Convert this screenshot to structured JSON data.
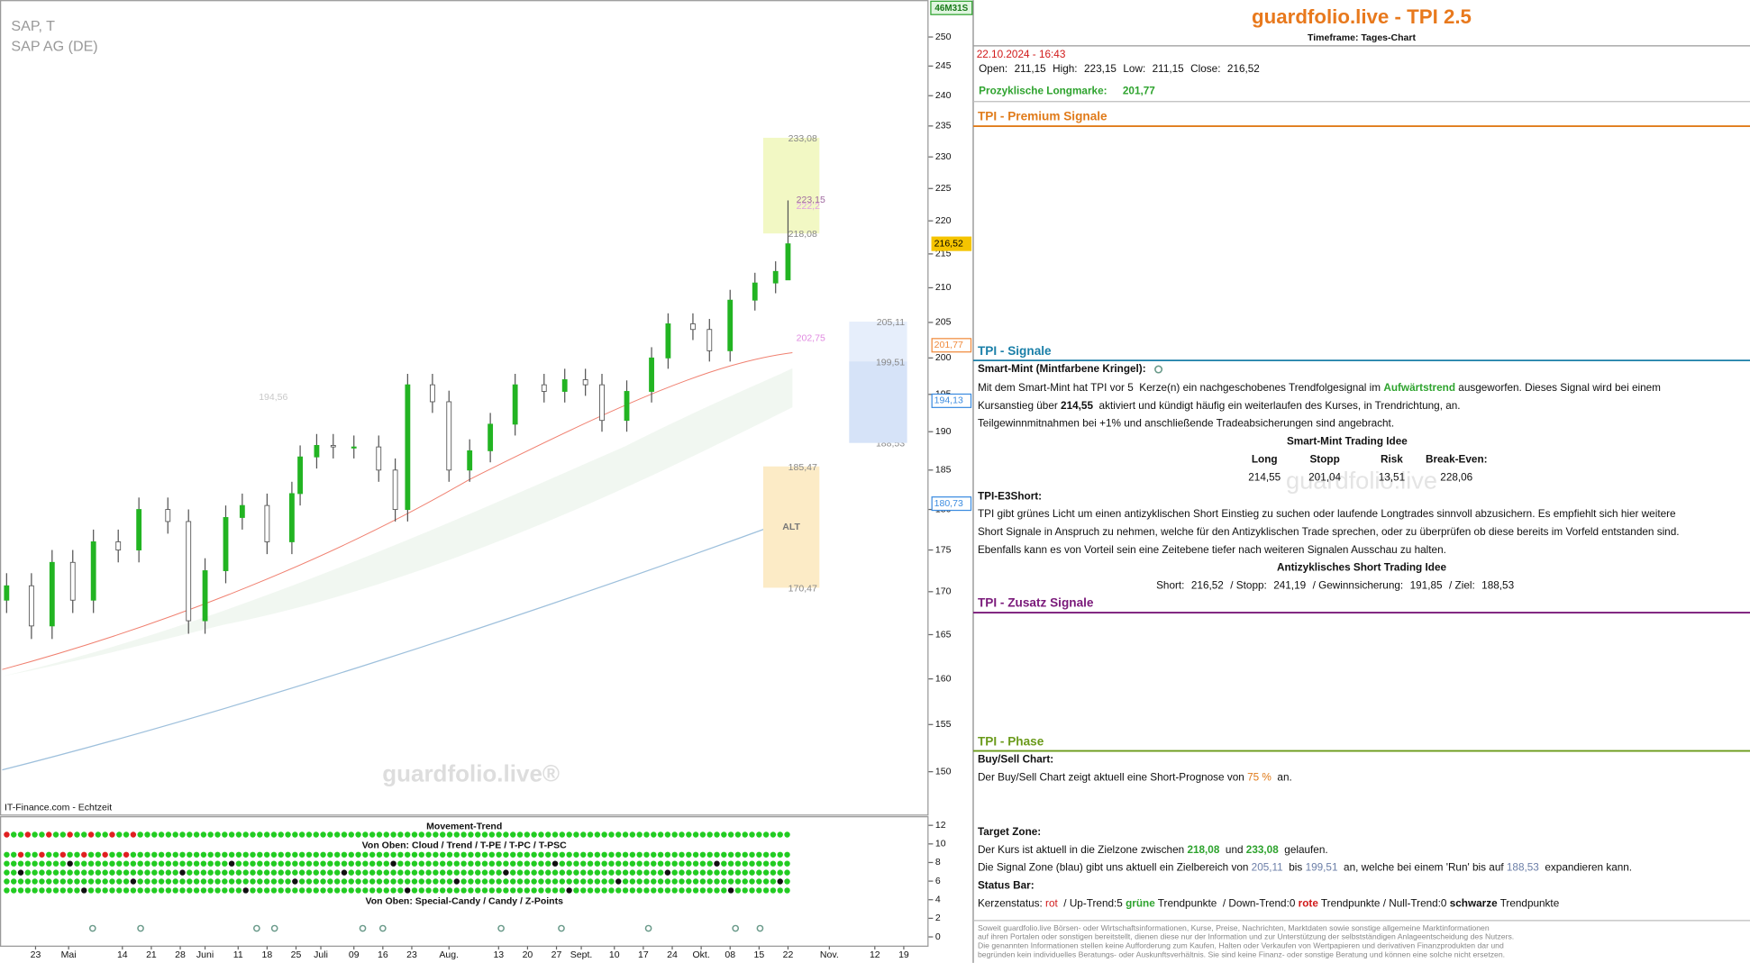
{
  "chart_data": {
    "type": "candlestick",
    "title": "SAP, T",
    "subtitle": "SAP AG (DE)",
    "source": "IT-Finance.com - Echtzeit",
    "watermark": "guardfolio.live®",
    "timer": "46M31S",
    "log_scale": true,
    "grid": false,
    "xlim": [
      -7.6,
      217
    ],
    "ylim": [
      145.6,
      256.5
    ],
    "yticks": [
      150,
      155,
      160,
      165,
      170,
      175,
      180,
      185,
      190,
      195,
      200,
      205,
      210,
      215,
      220,
      225,
      230,
      235,
      240,
      245,
      250
    ],
    "xticks": [
      {
        "value": 1,
        "label": "23"
      },
      {
        "value": 9,
        "label": "Mai"
      },
      {
        "value": 22,
        "label": "14"
      },
      {
        "value": 29,
        "label": "21"
      },
      {
        "value": 36,
        "label": "28"
      },
      {
        "value": 42,
        "label": "Juni"
      },
      {
        "value": 50,
        "label": "11"
      },
      {
        "value": 57,
        "label": "18"
      },
      {
        "value": 64,
        "label": "25"
      },
      {
        "value": 70,
        "label": "Juli"
      },
      {
        "value": 78,
        "label": "09"
      },
      {
        "value": 85,
        "label": "16"
      },
      {
        "value": 92,
        "label": "23"
      },
      {
        "value": 101,
        "label": "Aug."
      },
      {
        "value": 113,
        "label": "13"
      },
      {
        "value": 120,
        "label": "20"
      },
      {
        "value": 127,
        "label": "27"
      },
      {
        "value": 133,
        "label": "Sept."
      },
      {
        "value": 141,
        "label": "10"
      },
      {
        "value": 148,
        "label": "17"
      },
      {
        "value": 155,
        "label": "24"
      },
      {
        "value": 162,
        "label": "Okt."
      },
      {
        "value": 169,
        "label": "08"
      },
      {
        "value": 176,
        "label": "15"
      },
      {
        "value": 183,
        "label": "22"
      },
      {
        "value": 193,
        "label": "Nov."
      },
      {
        "value": 204,
        "label": "12"
      },
      {
        "value": 211,
        "label": "19"
      }
    ],
    "up_color": "#22b422",
    "down_color": "#ffffff",
    "candles": {
      "x": [
        -6,
        0,
        5,
        10,
        15,
        21,
        26,
        33,
        38,
        42,
        47,
        51,
        57,
        63,
        65,
        69,
        73,
        78,
        84,
        88,
        91,
        97,
        101,
        106,
        111,
        117,
        124,
        129,
        134,
        138,
        144,
        150,
        154,
        160,
        164,
        169,
        175,
        180,
        183
      ],
      "open": [
        169,
        170.7,
        166,
        173.5,
        169,
        176,
        175,
        180,
        178.5,
        166.6,
        172.5,
        179,
        180.5,
        176,
        182,
        186.7,
        188.2,
        188,
        188,
        185,
        180,
        196.3,
        194,
        185,
        187.5,
        191,
        196.3,
        195.4,
        197,
        196.3,
        191.5,
        195.4,
        200,
        204.8,
        204,
        201,
        208.2,
        210.7,
        211.15
      ],
      "high": [
        172.2,
        172.2,
        175,
        175,
        177.5,
        177.5,
        181.5,
        181.5,
        180,
        174,
        180.5,
        182,
        182,
        183.5,
        188.2,
        189.7,
        189.7,
        189.5,
        189.5,
        186.5,
        197.8,
        197.8,
        195.5,
        189,
        192.5,
        197.8,
        197.8,
        198.5,
        198.5,
        197.8,
        196.9,
        201.5,
        206.3,
        206.3,
        205.5,
        209.7,
        212.2,
        213.9,
        223.15
      ],
      "low": [
        167.5,
        164.5,
        164.5,
        167.5,
        167.5,
        173.5,
        173.5,
        177,
        165.1,
        165.1,
        171,
        177.5,
        174.5,
        174.5,
        180.5,
        185.2,
        186.5,
        186.5,
        183.5,
        178.5,
        178.5,
        192.5,
        183.5,
        183.5,
        186,
        189.5,
        193.9,
        193.9,
        194.8,
        190,
        190,
        193.9,
        198.5,
        202.5,
        199.5,
        199.5,
        206.7,
        209.2,
        211.15
      ],
      "close": [
        170.7,
        166,
        173.5,
        169,
        176,
        175,
        180,
        178.5,
        166.6,
        172.5,
        179,
        180.5,
        176,
        182,
        186.7,
        188.2,
        188,
        188,
        185,
        180,
        196.3,
        194,
        185,
        187.5,
        191,
        196.3,
        195.4,
        197,
        196.3,
        191.5,
        195.4,
        200,
        204.8,
        204,
        201,
        208.2,
        210.7,
        212.4,
        216.52
      ]
    },
    "zones": [
      {
        "x": [
          177,
          190.6
        ],
        "low": 218.08,
        "high": 233.08,
        "low_label": "218,08",
        "high_label": "233,08",
        "fill": "#f2f8c4"
      },
      {
        "x": [
          177,
          190.6
        ],
        "low": 170.47,
        "high": 185.47,
        "low_label": "170,47",
        "high_label": "185,47",
        "fill": "#fcebc6",
        "label": "ALT"
      },
      {
        "x": [
          197.8,
          211.8
        ],
        "low": 188.53,
        "high": 205.11,
        "low_label": "188,53",
        "high_label": "205,11",
        "mid": 199.51,
        "mid_label": "199,51",
        "fill": "#e6eefb"
      }
    ],
    "annotations": [
      {
        "x": 185,
        "value": 223.15,
        "label": "223,15",
        "color": "#a06aa0"
      },
      {
        "x": 185,
        "value": 222.2,
        "label": "222,2",
        "color": "#e0a0e0"
      },
      {
        "x": 185,
        "value": 202.75,
        "label": "202,75",
        "color": "#e08ae0"
      },
      {
        "x": 55,
        "value": 194.56,
        "label": "194,56",
        "color": "#c8c8c8"
      }
    ],
    "price_badges": [
      {
        "value": 216.52,
        "label": "216,52",
        "color": "#f5c400"
      },
      {
        "value": 201.77,
        "label": "201,77",
        "color": "#f08a3c"
      },
      {
        "value": 194.13,
        "label": "194,13",
        "color": "#3c8ce0"
      },
      {
        "value": 180.73,
        "label": "180,73",
        "color": "#3c8ce0"
      }
    ],
    "lower_pane": {
      "ylim": [
        -1,
        12.8
      ],
      "yticks": [
        0,
        2,
        4,
        6,
        8,
        10,
        12
      ],
      "title": "Movement-Trend",
      "caption_top": "Von Oben: Cloud / Trend / T-PE / T-PC / T-PSC",
      "caption_bottom": "Von Oben: Special-Candy / Candy / Z-Points"
    }
  },
  "panel": {
    "title": "guardfolio.live - TPI 2.5",
    "timeframe": "Timeframe: Tages-Chart",
    "datetime": "22.10.2024 - 16:43",
    "ohlc": [
      "Open:",
      "211,15",
      "High:",
      "223,15",
      "Low:",
      "211,15",
      "Close:",
      "216,52"
    ],
    "longmark": [
      "Prozyklische Longmarke:",
      "201,77"
    ],
    "sections": [
      "TPI - Premium Signale",
      "TPI - Signale",
      "TPI - Zusatz Signale",
      "TPI - Phase"
    ],
    "watermark": "guardfolio.live",
    "smart_mint": {
      "heading": "Smart-Mint (Mintfarbene Kringel):",
      "lines": [
        [
          "Mit dem Smart-Mint hat TPI vor 5  Kerze(n) ein nachgeschobenes Trendfolgesignal im ",
          "Aufwärtstrend",
          " ausgeworfen. Dieses Signal wird bei einem"
        ],
        [
          "Kursanstieg über ",
          "214,55",
          "  aktiviert und kündigt häufig ein weiterlaufen des Kurses, in Trendrichtung, an."
        ],
        [
          "Teilgewinnmitnahmen bei +1% und anschließende Tradeabsicherungen sind angebracht."
        ]
      ],
      "idea_title": "Smart-Mint Trading Idee",
      "idea_headers": [
        "Long",
        "Stopp",
        "Risk",
        "Break-Even:"
      ],
      "idea_values": [
        "214,55",
        "201,04",
        "13,51",
        "228,06"
      ]
    },
    "e3short": {
      "heading": "TPI-E3Short:",
      "lines": [
        "TPI gibt grünes Licht um einen antizyklischen Short Einstieg zu suchen oder laufende Longtrades sinnvoll abzusichern. Es empfiehlt sich hier weitere",
        "Short Signale in Anspruch zu nehmen, welche für den Antizyklischen Trade sprechen, oder zu überprüfen ob diese bereits im Vorfeld entstanden sind.",
        "Ebenfalls kann es von Vorteil sein eine Zeitebene tiefer nach weiteren Signalen Ausschau zu halten."
      ],
      "idea_title": "Antizyklisches Short Trading Idee",
      "idea": [
        "Short:",
        "216,52",
        "/ Stopp:",
        "241,19",
        "/ Gewinnsicherung:",
        "191,85",
        "/ Ziel:",
        "188,53"
      ]
    },
    "phase": {
      "heading": "Buy/Sell Chart:",
      "line": [
        "Der Buy/Sell Chart zeigt aktuell eine Short-Prognose von ",
        "75 %",
        "  an."
      ]
    },
    "target": {
      "heading": "Target Zone:",
      "line1": [
        "Der Kurs ist aktuell in die Zielzone zwischen ",
        "218,08",
        "  und ",
        "233,08",
        "  gelaufen."
      ],
      "line2": [
        "Die Signal Zone (blau) gibt uns aktuell ein Zielbereich von ",
        "205,11",
        "  bis ",
        "199,51",
        "  an, welche bei einem 'Run' bis auf ",
        "188,53",
        "  expandieren kann."
      ]
    },
    "status": {
      "heading": "Status Bar:",
      "line": [
        "Kerzenstatus: ",
        "rot",
        "  / Up-Trend:5 ",
        "grüne",
        " Trendpunkte  / Down-Trend:0 ",
        "rote",
        " Trendpunkte / Null-Trend:0 ",
        "schwarze",
        " Trendpunkte"
      ]
    },
    "disclaimer": [
      "Soweit guardfolio.live Börsen- oder Wirtschaftsinformationen, Kurse, Preise, Nachrichten, Marktdaten sowie sonstige allgemeine Marktinformationen",
      "auf ihren Portalen oder sonstigen bereitstellt, dienen diese nur der Information und zur Unterstützung der selbstständigen Anlageentscheidung des Nutzers.",
      "Die genannten Informationen stellen keine Aufforderung zum Kaufen, Halten oder Verkaufen von Wertpapieren und derivativen Finanzprodukten dar und",
      "begründen kein individuelles Beratungs- oder Auskunftsverhältnis. Sie sind keine Finanz- oder sonstige Beratung und können eine solche nicht ersetzen."
    ]
  }
}
